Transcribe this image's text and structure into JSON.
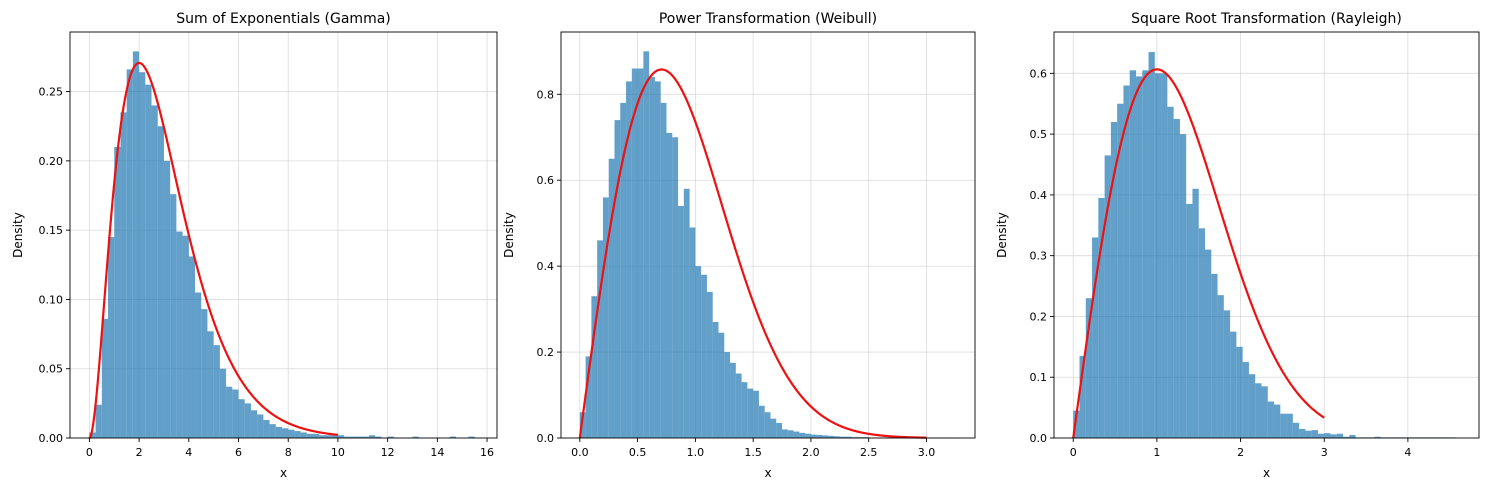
{
  "colors": {
    "bar": "#1f77b4",
    "bar_opacity": 0.7,
    "pdf_line": "#ee1111",
    "grid": "#cccccc"
  },
  "chart_data": [
    {
      "type": "bar",
      "title": "Sum of Exponentials (Gamma)",
      "xlabel": "x",
      "ylabel": "Density",
      "xlim": [
        -0.78,
        16.4
      ],
      "ylim": [
        0,
        0.293
      ],
      "xticks": [
        0,
        2,
        4,
        6,
        8,
        10,
        12,
        14,
        16
      ],
      "yticks": [
        0.0,
        0.05,
        0.1,
        0.15,
        0.2,
        0.25
      ],
      "ytick_decimals": 2,
      "grid": true,
      "histogram": {
        "bin_start": 0.0,
        "bin_width": 0.25,
        "values": [
          0.004,
          0.024,
          0.086,
          0.145,
          0.21,
          0.235,
          0.266,
          0.279,
          0.264,
          0.255,
          0.24,
          0.225,
          0.2,
          0.176,
          0.149,
          0.146,
          0.131,
          0.105,
          0.093,
          0.077,
          0.067,
          0.05,
          0.037,
          0.035,
          0.028,
          0.025,
          0.02,
          0.017,
          0.013,
          0.01,
          0.008,
          0.007,
          0.006,
          0.005,
          0.004,
          0.003,
          0.003,
          0.002,
          0.002,
          0.002,
          0.002,
          0.001,
          0.001,
          0.001,
          0.001,
          0.002,
          0.001,
          0,
          0.001,
          0,
          0,
          0,
          0.001,
          0,
          0,
          0,
          0,
          0,
          0.001,
          0,
          0,
          0.001
        ]
      },
      "pdf": {
        "distribution": "gamma",
        "shape": 3,
        "scale": 1,
        "x_range": [
          0,
          10
        ]
      }
    },
    {
      "type": "bar",
      "title": "Power Transformation (Weibull)",
      "xlabel": "x",
      "ylabel": "Density",
      "xlim": [
        -0.163,
        3.42
      ],
      "ylim": [
        0,
        0.945
      ],
      "xticks": [
        0.0,
        0.5,
        1.0,
        1.5,
        2.0,
        2.5,
        3.0
      ],
      "yticks": [
        0.0,
        0.2,
        0.4,
        0.6,
        0.8
      ],
      "ytick_decimals": 1,
      "grid": true,
      "histogram": {
        "bin_start": 0.0,
        "bin_width": 0.05,
        "values": [
          0.06,
          0.19,
          0.33,
          0.46,
          0.56,
          0.65,
          0.74,
          0.78,
          0.83,
          0.86,
          0.86,
          0.9,
          0.84,
          0.83,
          0.78,
          0.71,
          0.7,
          0.54,
          0.58,
          0.49,
          0.4,
          0.38,
          0.34,
          0.27,
          0.245,
          0.2,
          0.175,
          0.15,
          0.13,
          0.115,
          0.11,
          0.075,
          0.06,
          0.045,
          0.035,
          0.02,
          0.018,
          0.015,
          0.012,
          0.01,
          0.008,
          0.007,
          0.006,
          0.005,
          0.004,
          0.003,
          0.003,
          0.002,
          0.002,
          0.002,
          0.001,
          0.001,
          0.001,
          0.001,
          0.001,
          0.001,
          0.001,
          0.001,
          0.001,
          0.001,
          0.001,
          0.001,
          0.001,
          0.001,
          0.001
        ]
      },
      "pdf": {
        "distribution": "weibull",
        "shape": 2,
        "scale": 1,
        "x_range": [
          0,
          3
        ]
      }
    },
    {
      "type": "bar",
      "title": "Square Root Transformation (Rayleigh)",
      "xlabel": "x",
      "ylabel": "Density",
      "xlim": [
        -0.23,
        4.85
      ],
      "ylim": [
        0,
        0.668
      ],
      "xticks": [
        0,
        1,
        2,
        3,
        4
      ],
      "yticks": [
        0.0,
        0.1,
        0.2,
        0.3,
        0.4,
        0.5,
        0.6
      ],
      "ytick_decimals": 1,
      "grid": true,
      "histogram": {
        "bin_start": 0.0,
        "bin_width": 0.075,
        "values": [
          0.045,
          0.135,
          0.23,
          0.33,
          0.395,
          0.465,
          0.52,
          0.55,
          0.58,
          0.605,
          0.595,
          0.605,
          0.635,
          0.6,
          0.6,
          0.545,
          0.525,
          0.5,
          0.385,
          0.41,
          0.345,
          0.31,
          0.27,
          0.235,
          0.21,
          0.175,
          0.15,
          0.125,
          0.105,
          0.09,
          0.085,
          0.06,
          0.055,
          0.04,
          0.04,
          0.025,
          0.015,
          0.012,
          0.013,
          0.007,
          0.008,
          0.006,
          0.007,
          0.002,
          0.005,
          0.001,
          0.001,
          0.001,
          0.002,
          0.001,
          0.001,
          0.001,
          0.001,
          0.001,
          0.001,
          0.001,
          0.001,
          0.001,
          0.001,
          0.001,
          0.001
        ]
      },
      "pdf": {
        "distribution": "rayleigh",
        "sigma": 1,
        "x_range": [
          0,
          3
        ]
      }
    }
  ]
}
